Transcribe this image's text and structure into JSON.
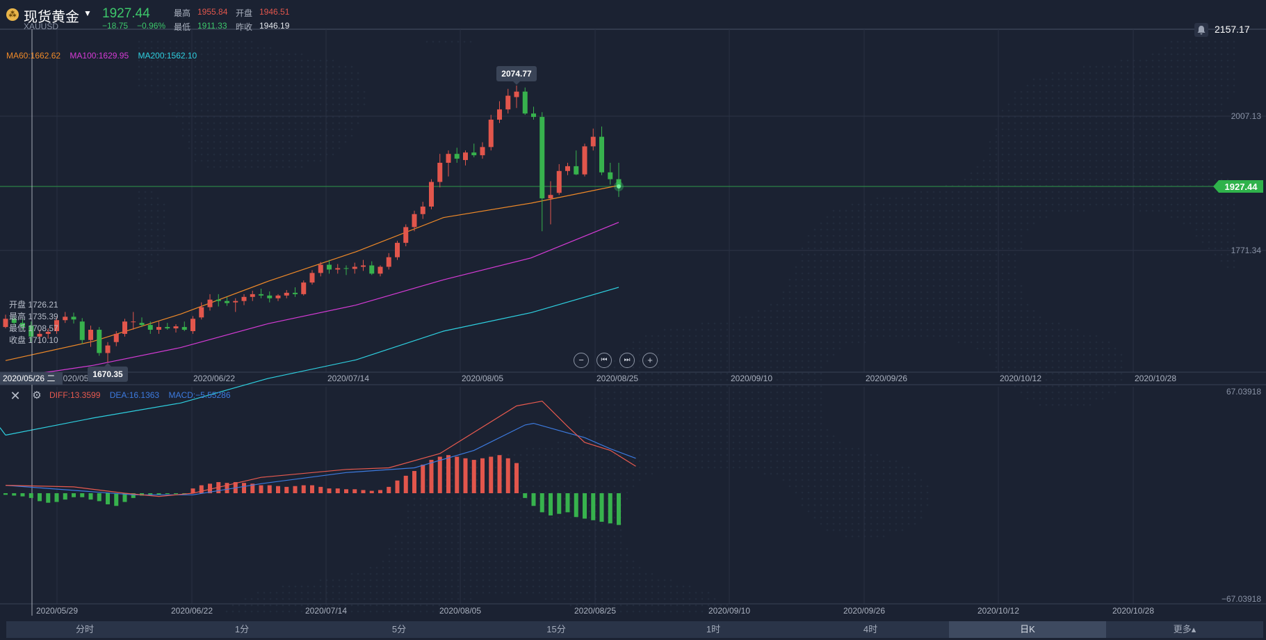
{
  "header": {
    "name": "现货黄金",
    "code": "XAUUSD",
    "price": "1927.44",
    "change": "−18.75",
    "change_pct": "−0.96%",
    "high_label": "最高",
    "high_value": "1955.84",
    "open_label": "开盘",
    "open_value": "1946.51",
    "low_label": "最低",
    "low_value": "1911.33",
    "prev_close_label": "昨收",
    "prev_close_value": "1946.19",
    "top_right_price": "2157.17"
  },
  "ma_legend": [
    {
      "text": "MA60:1662.62",
      "color": "#f08a28"
    },
    {
      "text": "MA100:1629.95",
      "color": "#d63bd6"
    },
    {
      "text": "MA200:1562.10",
      "color": "#2ed0e0"
    }
  ],
  "macd_legend": [
    {
      "text": "DIFF:13.3599",
      "color": "#e85a4f"
    },
    {
      "text": "DEA:16.1363",
      "color": "#3d7be0"
    },
    {
      "text": "MACD:−5.55286",
      "color": "#3d7be0"
    }
  ],
  "ohlc_box": [
    "开盘 1726.21",
    "最高 1735.39",
    "最低 1708.57",
    "收盘 1710.10"
  ],
  "crosshair_date": "2020/05/26 二",
  "zoom_controls": {
    "zoom_out": "−",
    "prev": "⏮",
    "next": "⏭",
    "zoom_in": "+"
  },
  "tabs": [
    {
      "label": "分时",
      "active": false
    },
    {
      "label": "1分",
      "active": false
    },
    {
      "label": "5分",
      "active": false
    },
    {
      "label": "15分",
      "active": false
    },
    {
      "label": "1时",
      "active": false
    },
    {
      "label": "4时",
      "active": false
    },
    {
      "label": "日K",
      "active": true
    },
    {
      "label": "更多▴",
      "active": false
    }
  ],
  "chart_data": {
    "type": "candlestick",
    "x_tick_labels": [
      "2020/05/29",
      "2020/06/22",
      "2020/07/14",
      "2020/08/05",
      "2020/08/25",
      "2020/09/10",
      "2020/09/26",
      "2020/10/12",
      "2020/10/28"
    ],
    "price_axis": {
      "range": [
        1656,
        2157.17
      ],
      "tick_labels": [
        "2157.17",
        "2007.13",
        "1771.34"
      ]
    },
    "last_price_label": "1927.44",
    "max_annotation": "2074.77",
    "min_annotation": "1670.35",
    "colors": {
      "up": "#e2564c",
      "down": "#37b24d"
    },
    "candles": [
      [
        1722,
        1740,
        1720,
        1734
      ],
      [
        1734,
        1738,
        1724,
        1728
      ],
      [
        1728,
        1734,
        1718,
        1722
      ],
      [
        1724,
        1730,
        1700,
        1708
      ],
      [
        1708,
        1718,
        1698,
        1712
      ],
      [
        1712,
        1720,
        1705,
        1715
      ],
      [
        1716,
        1736,
        1712,
        1732
      ],
      [
        1732,
        1744,
        1728,
        1737
      ],
      [
        1737,
        1743,
        1727,
        1733
      ],
      [
        1730,
        1735,
        1697,
        1703
      ],
      [
        1703,
        1724,
        1693,
        1718
      ],
      [
        1718,
        1722,
        1680,
        1684
      ],
      [
        1684,
        1700,
        1670.35,
        1695
      ],
      [
        1700,
        1716,
        1694,
        1712
      ],
      [
        1712,
        1734,
        1708,
        1730
      ],
      [
        1730,
        1744,
        1718,
        1730
      ],
      [
        1728,
        1736,
        1722,
        1725
      ],
      [
        1725,
        1730,
        1712,
        1718
      ],
      [
        1718,
        1730,
        1712,
        1722
      ],
      [
        1722,
        1728,
        1718,
        1720
      ],
      [
        1720,
        1726,
        1714,
        1723
      ],
      [
        1722,
        1730,
        1716,
        1718
      ],
      [
        1716,
        1738,
        1712,
        1734
      ],
      [
        1736,
        1758,
        1733,
        1751
      ],
      [
        1751,
        1770,
        1746,
        1762
      ],
      [
        1762,
        1770,
        1752,
        1760
      ],
      [
        1760,
        1766,
        1753,
        1757
      ],
      [
        1758,
        1764,
        1744,
        1760
      ],
      [
        1760,
        1770,
        1754,
        1766
      ],
      [
        1766,
        1775,
        1760,
        1770
      ],
      [
        1770,
        1778,
        1764,
        1768
      ],
      [
        1768,
        1774,
        1758,
        1764
      ],
      [
        1764,
        1770,
        1760,
        1768
      ],
      [
        1768,
        1776,
        1764,
        1772
      ],
      [
        1772,
        1780,
        1766,
        1770
      ],
      [
        1770,
        1790,
        1768,
        1787
      ],
      [
        1787,
        1805,
        1784,
        1801
      ],
      [
        1801,
        1817,
        1796,
        1813
      ],
      [
        1813,
        1820,
        1800,
        1806
      ],
      [
        1806,
        1814,
        1800,
        1808
      ],
      [
        1808,
        1812,
        1798,
        1807
      ],
      [
        1807,
        1816,
        1800,
        1810
      ],
      [
        1810,
        1820,
        1804,
        1812
      ],
      [
        1812,
        1818,
        1798,
        1800
      ],
      [
        1800,
        1812,
        1796,
        1810
      ],
      [
        1810,
        1830,
        1806,
        1824
      ],
      [
        1824,
        1848,
        1820,
        1845
      ],
      [
        1845,
        1872,
        1840,
        1868
      ],
      [
        1868,
        1892,
        1862,
        1887
      ],
      [
        1887,
        1905,
        1880,
        1898
      ],
      [
        1898,
        1938,
        1894,
        1934
      ],
      [
        1934,
        1975,
        1926,
        1962
      ],
      [
        1962,
        1980,
        1942,
        1975
      ],
      [
        1975,
        1984,
        1962,
        1968
      ],
      [
        1966,
        1980,
        1958,
        1977
      ],
      [
        1977,
        1990,
        1970,
        1973
      ],
      [
        1973,
        1992,
        1968,
        1985
      ],
      [
        1985,
        2032,
        1980,
        2025
      ],
      [
        2025,
        2052,
        2020,
        2040
      ],
      [
        2040,
        2070,
        2034,
        2060
      ],
      [
        2058,
        2074.77,
        2042,
        2066
      ],
      [
        2066,
        2072,
        2032,
        2034
      ],
      [
        2034,
        2044,
        2025,
        2029
      ],
      [
        2029,
        2036,
        1862,
        1910
      ],
      [
        1910,
        1935,
        1872,
        1915
      ],
      [
        1918,
        1960,
        1915,
        1950
      ],
      [
        1950,
        1962,
        1944,
        1957
      ],
      [
        1957,
        1980,
        1944,
        1945
      ],
      [
        1945,
        1990,
        1942,
        1986
      ],
      [
        1986,
        2012,
        1980,
        2000
      ],
      [
        2000,
        2015,
        1944,
        1948
      ],
      [
        1948,
        1962,
        1930,
        1938
      ],
      [
        1938,
        1962,
        1912,
        1927.44
      ]
    ],
    "ma60": {
      "name": "MA60",
      "values": [
        1673,
        1701,
        1741,
        1789,
        1832,
        1882,
        1903,
        1929
      ],
      "color": "#f08a28"
    },
    "ma100": {
      "name": "MA100",
      "values": [
        1647,
        1666,
        1692,
        1727,
        1754,
        1791,
        1823,
        1875
      ],
      "color": "#d63bd6"
    },
    "ma200": {
      "name": "MA200",
      "values": [
        1564,
        1589,
        1611,
        1647,
        1674,
        1716,
        1743,
        1780
      ],
      "color": "#2ed0e0"
    },
    "macd": {
      "axis_tick_labels": [
        "67.03918",
        "−67.03918"
      ],
      "range": [
        -67.03918,
        67.03918
      ],
      "hist": [
        -1,
        -1.5,
        -2,
        -3,
        -5,
        -6,
        -5.5,
        -4,
        -2.5,
        -2.5,
        -4,
        -5,
        -7,
        -8,
        -5.5,
        -3,
        -1.5,
        -1,
        -0.8,
        -0.5,
        -0.5,
        -0.4,
        3,
        5,
        6,
        7,
        6.5,
        7,
        6.5,
        6,
        5,
        5,
        4.5,
        4,
        4.5,
        5,
        5,
        4,
        3,
        3,
        2.5,
        2.5,
        2,
        1.5,
        2,
        4,
        8,
        11,
        14,
        18,
        21,
        23,
        24,
        23,
        22,
        21,
        22,
        23,
        24,
        22,
        19,
        -3,
        -8,
        -12,
        -14,
        -13,
        -12,
        -15,
        -16,
        -17,
        -18,
        -19,
        -20
      ],
      "diff_points": [
        [
          0,
          5
        ],
        [
          8,
          4
        ],
        [
          14,
          0
        ],
        [
          18,
          -2
        ],
        [
          22,
          0
        ],
        [
          30,
          10
        ],
        [
          40,
          15
        ],
        [
          45,
          16
        ],
        [
          51,
          25
        ],
        [
          60,
          55
        ],
        [
          63,
          58
        ],
        [
          66,
          42
        ],
        [
          68,
          32
        ],
        [
          71,
          27
        ],
        [
          74,
          17
        ]
      ],
      "dea_points": [
        [
          0,
          5
        ],
        [
          10,
          1
        ],
        [
          15,
          -1
        ],
        [
          22,
          -1
        ],
        [
          30,
          6
        ],
        [
          40,
          13
        ],
        [
          48,
          16
        ],
        [
          55,
          27
        ],
        [
          61,
          43
        ],
        [
          62,
          44
        ],
        [
          66,
          38
        ],
        [
          68,
          35
        ],
        [
          71,
          28
        ],
        [
          74,
          22
        ]
      ]
    }
  }
}
